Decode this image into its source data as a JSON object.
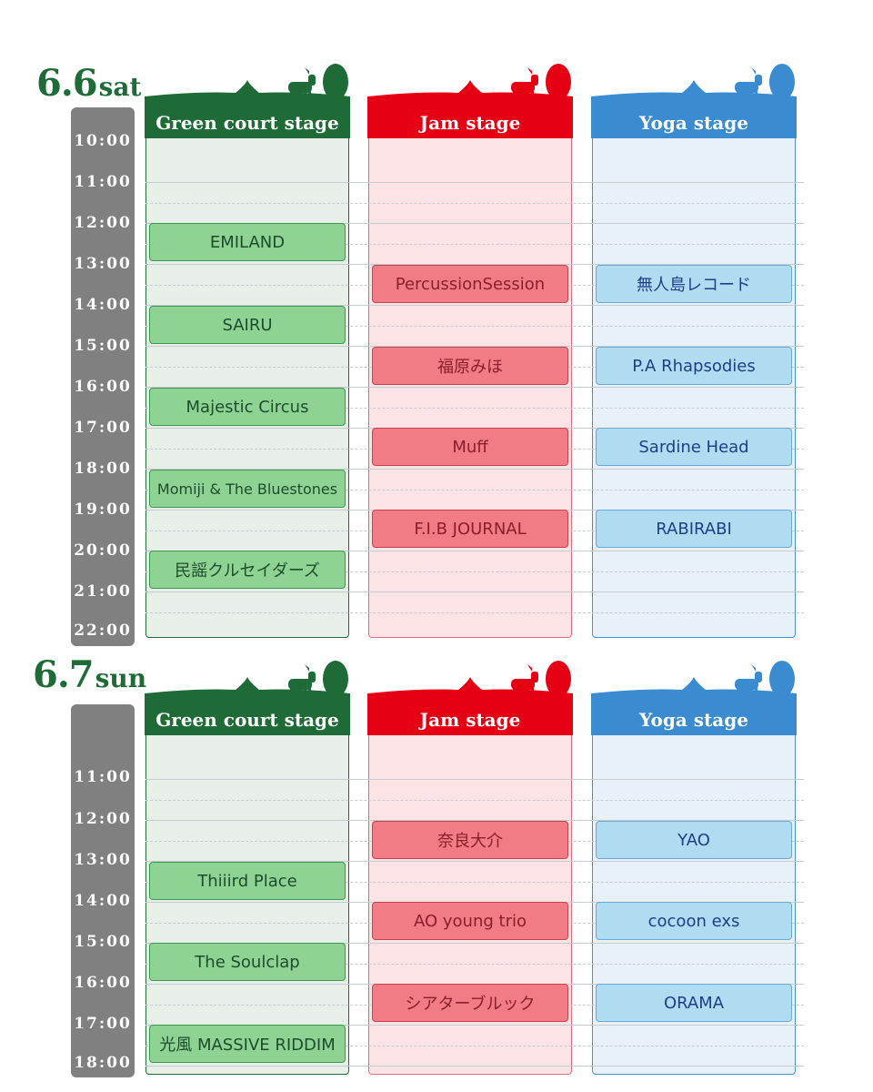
{
  "colors": {
    "green": "#1e6b37",
    "red": "#e60014",
    "blue": "#3a8bd0",
    "time_bar": "#808080"
  },
  "icons": [
    "goat-icon",
    "tree-icon"
  ],
  "stages": {
    "green": "Green court stage",
    "jam": "Jam stage",
    "yoga": "Yoga stage"
  },
  "days": [
    {
      "date": "6.6",
      "weekday": "sat",
      "times": [
        "10:00",
        "11:00",
        "12:00",
        "13:00",
        "14:00",
        "15:00",
        "16:00",
        "17:00",
        "18:00",
        "19:00",
        "20:00",
        "21:00",
        "22:00"
      ],
      "green": [
        "EMILAND",
        "SAIRU",
        "Majestic Circus",
        "Momiji & The Bluestones",
        "民謡クルセイダーズ"
      ],
      "jam": [
        "PercussionSession",
        "福原みほ",
        "Muff",
        "F.I.B JOURNAL"
      ],
      "yoga": [
        "無人島レコード",
        "P.A Rhapsodies",
        "Sardine Head",
        "RABIRABI"
      ]
    },
    {
      "date": "6.7",
      "weekday": "sun",
      "times": [
        "11:00",
        "12:00",
        "13:00",
        "14:00",
        "15:00",
        "16:00",
        "17:00",
        "18:00"
      ],
      "green": [
        "Thiiird Place",
        "The Soulclap",
        "光風 MASSIVE RIDDIM"
      ],
      "jam": [
        "奈良大介",
        "AO young trio",
        "シアターブルック"
      ],
      "yoga": [
        "YAO",
        "cocoon exs",
        "ORAMA"
      ]
    }
  ]
}
